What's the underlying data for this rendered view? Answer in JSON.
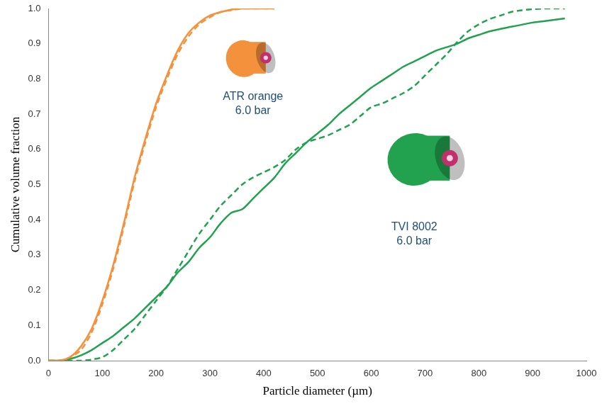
{
  "chart_data": {
    "type": "line",
    "x_label": "Particle diameter (µm)",
    "y_label": "Cumulative volume fraction",
    "x": [
      0,
      20,
      40,
      60,
      80,
      100,
      120,
      140,
      160,
      180,
      200,
      220,
      240,
      260,
      280,
      300,
      320,
      340,
      360,
      380,
      400,
      420,
      440,
      460,
      480,
      500,
      520,
      540,
      560,
      580,
      600,
      620,
      640,
      660,
      680,
      700,
      720,
      740,
      760,
      780,
      800,
      820,
      840,
      860,
      880,
      900,
      920,
      940,
      960
    ],
    "series": [
      {
        "color": "#f4913c",
        "line_style": "solid",
        "values": [
          0,
          0,
          0.01,
          0.04,
          0.09,
          0.17,
          0.27,
          0.39,
          0.52,
          0.63,
          0.73,
          0.81,
          0.88,
          0.93,
          0.96,
          0.98,
          0.99,
          0.997,
          1.0,
          1.0,
          1.0,
          1.0,
          null,
          null,
          null,
          null,
          null,
          null,
          null,
          null,
          null,
          null,
          null,
          null,
          null,
          null,
          null,
          null,
          null,
          null,
          null,
          null,
          null,
          null,
          null,
          null,
          null,
          null,
          null
        ]
      },
      {
        "color": "#f4913c",
        "line_style": "dashed",
        "values": [
          0,
          0,
          0.01,
          0.03,
          0.08,
          0.16,
          0.26,
          0.38,
          0.51,
          0.62,
          0.72,
          0.8,
          0.87,
          0.92,
          0.955,
          0.975,
          0.99,
          0.995,
          1.0,
          1.0,
          1.0,
          1.0,
          null,
          null,
          null,
          null,
          null,
          null,
          null,
          null,
          null,
          null,
          null,
          null,
          null,
          null,
          null,
          null,
          null,
          null,
          null,
          null,
          null,
          null,
          null,
          null,
          null,
          null,
          null
        ]
      },
      {
        "color": "#22a24f",
        "line_style": "solid",
        "values": [
          0,
          0,
          0.005,
          0.015,
          0.03,
          0.05,
          0.07,
          0.095,
          0.12,
          0.15,
          0.18,
          0.21,
          0.25,
          0.28,
          0.32,
          0.35,
          0.39,
          0.42,
          0.43,
          0.46,
          0.49,
          0.52,
          0.56,
          0.59,
          0.62,
          0.645,
          0.67,
          0.7,
          0.725,
          0.75,
          0.775,
          0.795,
          0.815,
          0.835,
          0.85,
          0.865,
          0.88,
          0.89,
          0.9,
          0.915,
          0.925,
          0.935,
          0.942,
          0.948,
          0.954,
          0.96,
          0.964,
          0.968,
          0.972
        ]
      },
      {
        "color": "#22a24f",
        "line_style": "dashed",
        "values": [
          0,
          0,
          0,
          0,
          0.003,
          0.01,
          0.03,
          0.06,
          0.09,
          0.13,
          0.17,
          0.21,
          0.26,
          0.31,
          0.36,
          0.4,
          0.44,
          0.47,
          0.5,
          0.52,
          0.535,
          0.55,
          0.57,
          0.6,
          0.62,
          0.63,
          0.64,
          0.655,
          0.67,
          0.695,
          0.72,
          0.73,
          0.745,
          0.76,
          0.78,
          0.81,
          0.84,
          0.87,
          0.905,
          0.935,
          0.955,
          0.97,
          0.98,
          0.99,
          0.995,
          0.998,
          1.0,
          1.0,
          1.0
        ]
      }
    ],
    "annotations": [
      {
        "text": [
          "ATR orange",
          "6.0 bar"
        ],
        "color": "#1f4e79"
      },
      {
        "text": [
          "TVI 8002",
          "6.0 bar"
        ],
        "color": "#1f4e79"
      }
    ],
    "xlim": [
      0,
      1000
    ],
    "xticks": [
      0,
      100,
      200,
      300,
      400,
      500,
      600,
      700,
      800,
      900,
      1000
    ],
    "ylim": [
      0,
      1
    ],
    "yticks": [
      {
        "value": 0,
        "label": "0.0"
      },
      0.1,
      0.2,
      0.3,
      0.4,
      0.5,
      0.6,
      0.7,
      0.8,
      0.9,
      {
        "value": 1,
        "label": "1.0"
      }
    ],
    "grid": false
  }
}
